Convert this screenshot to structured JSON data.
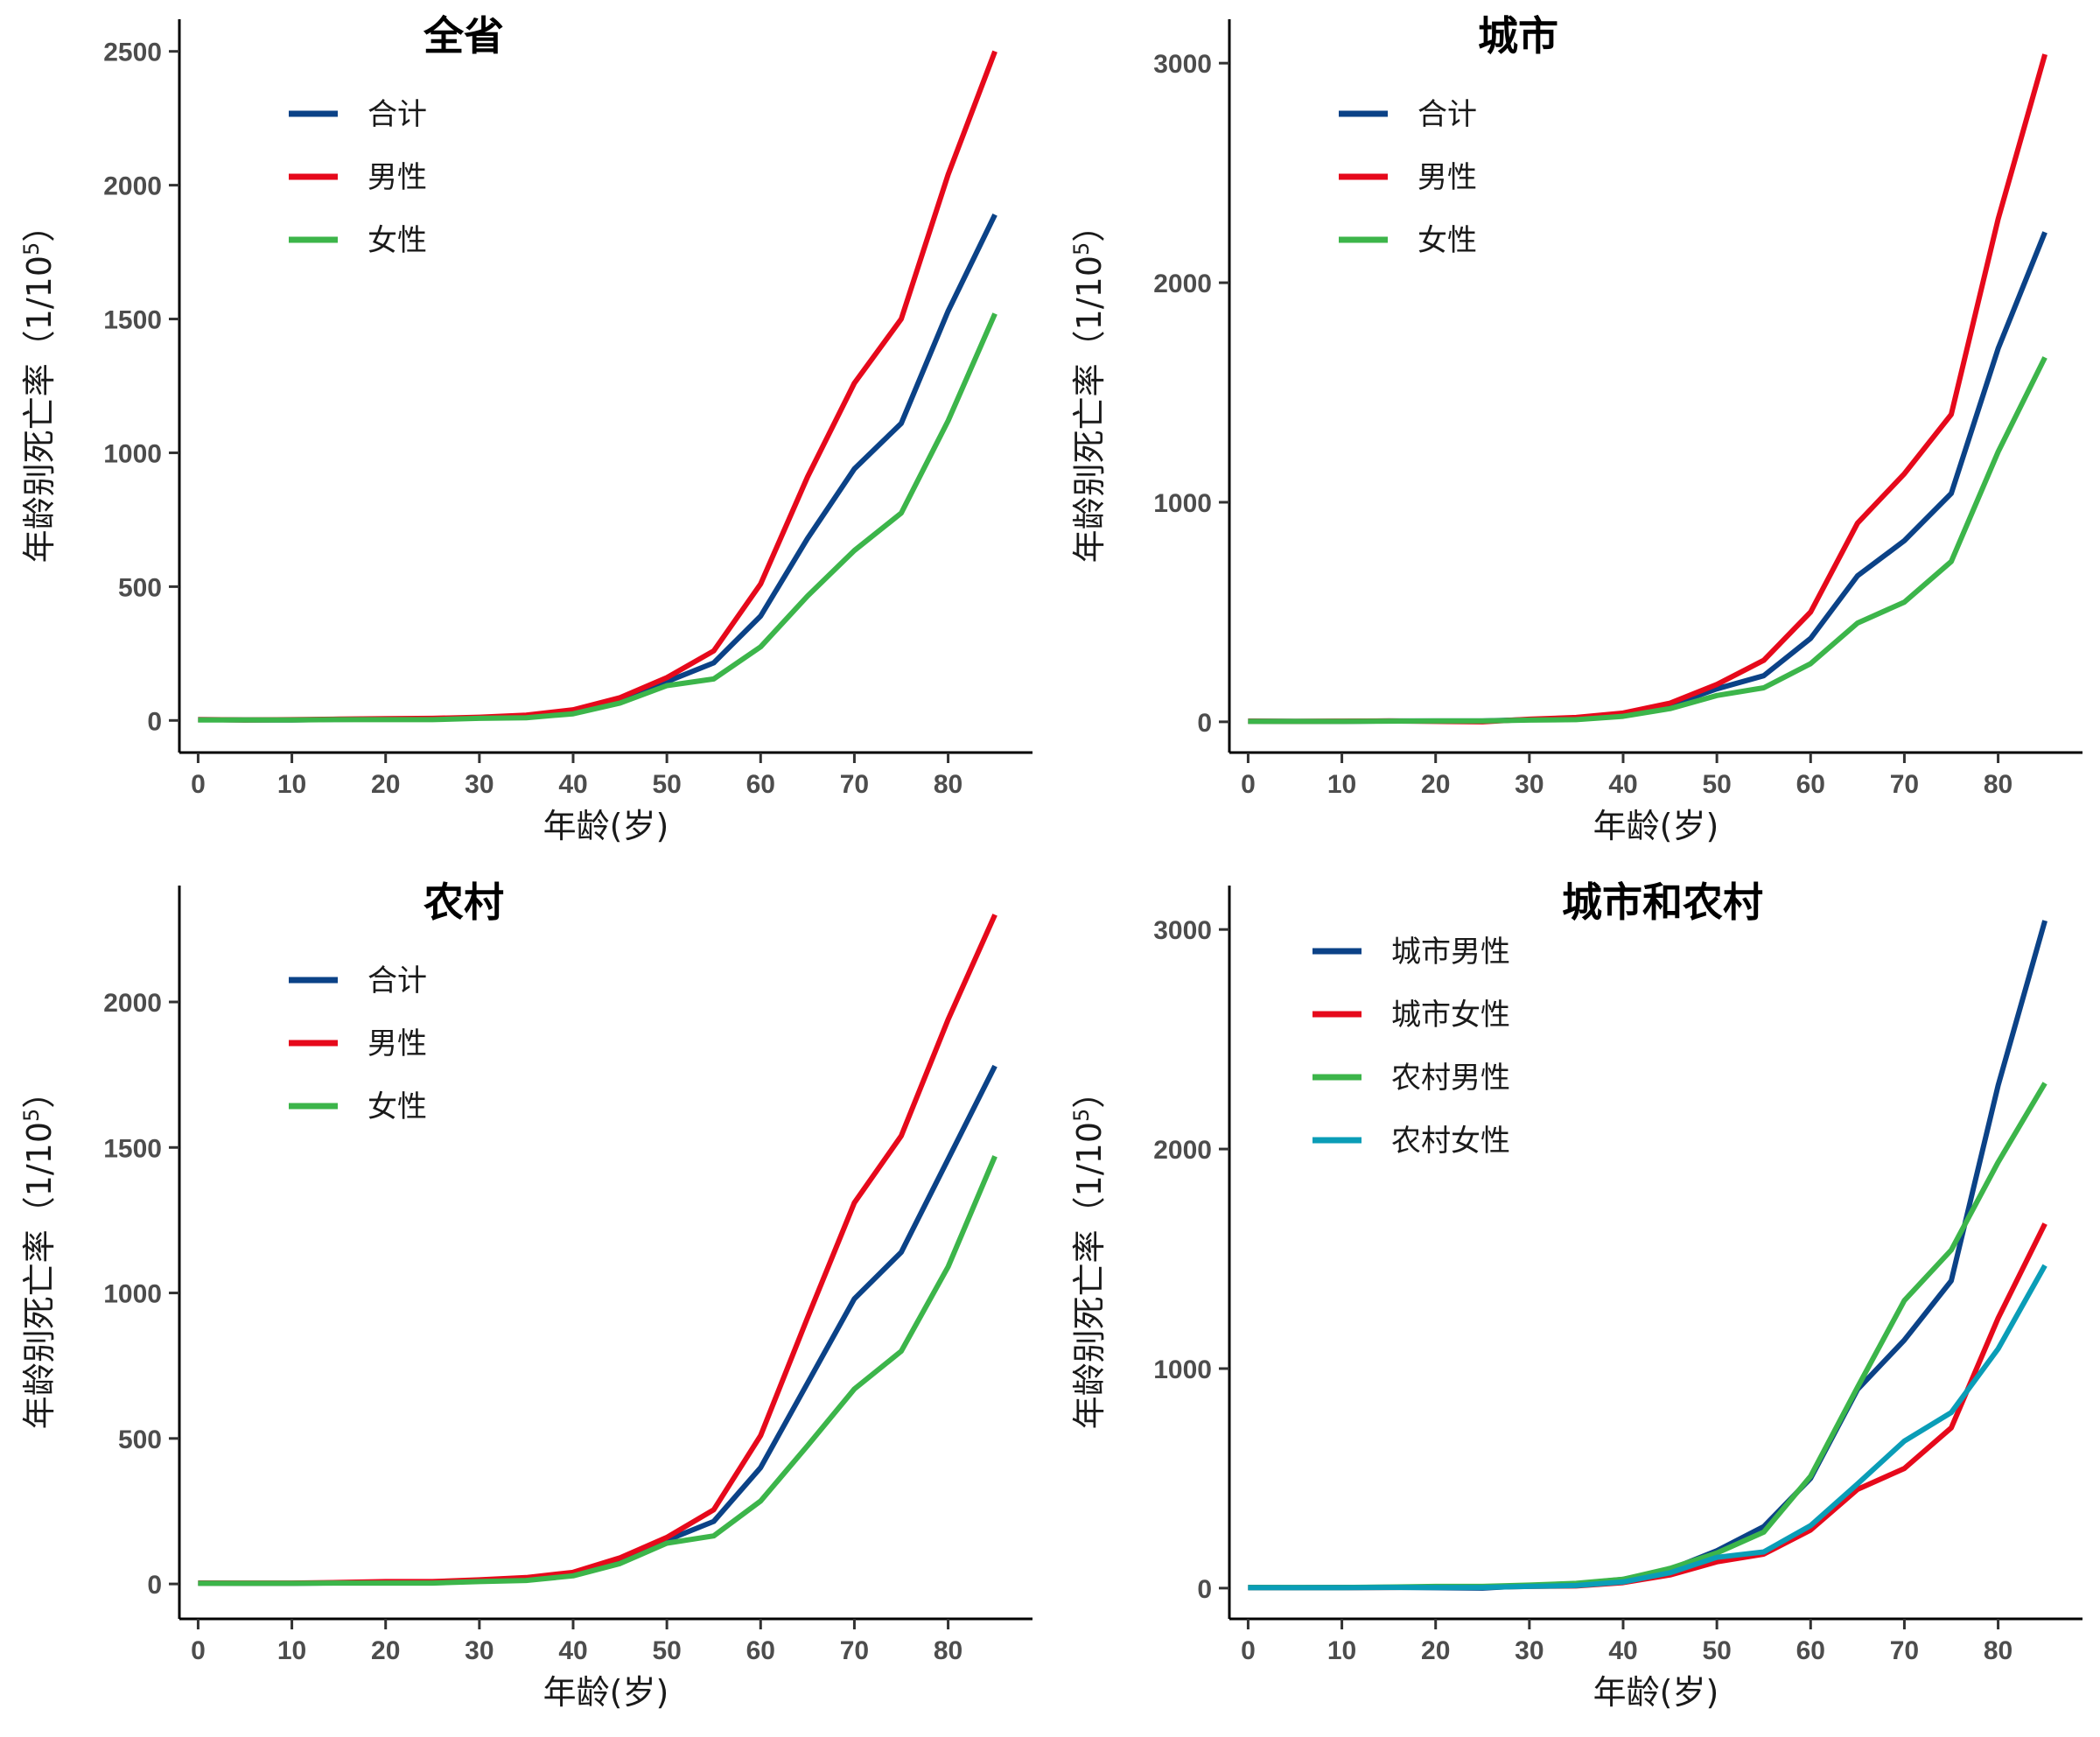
{
  "colors": {
    "total": "#0b4287",
    "male": "#e6091b",
    "female": "#3cb54a",
    "teal": "#0a9db7"
  },
  "chart_data": [
    {
      "type": "line",
      "title": "全省",
      "xlabel": "年龄(岁)",
      "ylabel": "年龄别死亡率（1/10",
      "ylabel_sup": "5",
      "ylabel_close": "）",
      "xlim": [
        -2,
        89
      ],
      "ylim": [
        -120,
        2620
      ],
      "xticks": [
        0,
        10,
        20,
        30,
        40,
        50,
        60,
        70,
        80
      ],
      "yticks": [
        0,
        500,
        1000,
        1500,
        2000,
        2500
      ],
      "legend_position": "top-left",
      "x": [
        0,
        5,
        10,
        15,
        20,
        25,
        30,
        35,
        40,
        45,
        50,
        55,
        60,
        65,
        70,
        75,
        80,
        85
      ],
      "series": [
        {
          "name": "合计",
          "color": "#0b4287",
          "values": [
            3,
            2,
            2,
            4,
            5,
            5,
            10,
            15,
            35,
            75,
            145,
            215,
            390,
            680,
            940,
            1110,
            1530,
            1890
          ]
        },
        {
          "name": "男性",
          "color": "#e6091b",
          "values": [
            3,
            2,
            3,
            5,
            7,
            8,
            12,
            20,
            40,
            85,
            160,
            260,
            510,
            910,
            1260,
            1500,
            2040,
            2500
          ]
        },
        {
          "name": "女性",
          "color": "#3cb54a",
          "values": [
            2,
            2,
            2,
            3,
            3,
            3,
            8,
            10,
            25,
            65,
            130,
            155,
            275,
            465,
            635,
            775,
            1120,
            1520
          ]
        }
      ]
    },
    {
      "type": "line",
      "title": "城市",
      "xlabel": "年龄(岁)",
      "ylabel": "年龄别死亡率（1/10",
      "ylabel_sup": "5",
      "ylabel_close": "）",
      "xlim": [
        -2,
        89
      ],
      "ylim": [
        -140,
        3200
      ],
      "xticks": [
        0,
        10,
        20,
        30,
        40,
        50,
        60,
        70,
        80
      ],
      "yticks": [
        0,
        1000,
        2000,
        3000
      ],
      "legend_position": "top-left",
      "x": [
        0,
        5,
        10,
        15,
        20,
        25,
        30,
        35,
        40,
        45,
        50,
        55,
        60,
        65,
        70,
        75,
        80,
        85
      ],
      "series": [
        {
          "name": "合计",
          "color": "#0b4287",
          "values": [
            3,
            2,
            2,
            4,
            4,
            4,
            10,
            15,
            35,
            75,
            150,
            210,
            380,
            665,
            825,
            1040,
            1700,
            2230
          ]
        },
        {
          "name": "男性",
          "color": "#e6091b",
          "values": [
            3,
            2,
            3,
            4,
            2,
            0,
            12,
            20,
            40,
            85,
            170,
            280,
            500,
            905,
            1130,
            1400,
            2290,
            3040
          ]
        },
        {
          "name": "女性",
          "color": "#3cb54a",
          "values": [
            2,
            2,
            2,
            3,
            4,
            4,
            8,
            10,
            25,
            60,
            120,
            155,
            265,
            450,
            545,
            730,
            1230,
            1660
          ]
        }
      ]
    },
    {
      "type": "line",
      "title": "农村",
      "xlabel": "年龄(岁)",
      "ylabel": "年龄别死亡率（1/10",
      "ylabel_sup": "5",
      "ylabel_close": "）",
      "xlim": [
        -2,
        89
      ],
      "ylim": [
        -120,
        2400
      ],
      "xticks": [
        0,
        10,
        20,
        30,
        40,
        50,
        60,
        70,
        80
      ],
      "yticks": [
        0,
        500,
        1000,
        1500,
        2000
      ],
      "legend_position": "top-left",
      "x": [
        0,
        5,
        10,
        15,
        20,
        25,
        30,
        35,
        40,
        45,
        50,
        55,
        60,
        65,
        70,
        75,
        80,
        85
      ],
      "series": [
        {
          "name": "合计",
          "color": "#0b4287",
          "values": [
            3,
            2,
            2,
            4,
            5,
            5,
            10,
            15,
            35,
            80,
            150,
            215,
            400,
            690,
            980,
            1140,
            1460,
            1780
          ]
        },
        {
          "name": "男性",
          "color": "#e6091b",
          "values": [
            3,
            3,
            3,
            5,
            8,
            8,
            14,
            22,
            40,
            90,
            160,
            255,
            510,
            915,
            1310,
            1540,
            1940,
            2300
          ]
        },
        {
          "name": "女性",
          "color": "#3cb54a",
          "values": [
            2,
            2,
            2,
            3,
            3,
            3,
            8,
            12,
            28,
            70,
            140,
            165,
            285,
            475,
            670,
            800,
            1090,
            1470
          ]
        }
      ]
    },
    {
      "type": "line",
      "title": "城市和农村",
      "xlabel": "年龄(岁)",
      "ylabel": "年龄别死亡率（1/10",
      "ylabel_sup": "5",
      "ylabel_close": "）",
      "xlim": [
        -2,
        89
      ],
      "ylim": [
        -140,
        3200
      ],
      "xticks": [
        0,
        10,
        20,
        30,
        40,
        50,
        60,
        70,
        80
      ],
      "yticks": [
        0,
        1000,
        2000,
        3000
      ],
      "legend_position": "top-left",
      "x": [
        0,
        5,
        10,
        15,
        20,
        25,
        30,
        35,
        40,
        45,
        50,
        55,
        60,
        65,
        70,
        75,
        80,
        85
      ],
      "series": [
        {
          "name": "城市男性",
          "color": "#0b4287",
          "values": [
            3,
            2,
            3,
            4,
            2,
            0,
            12,
            20,
            40,
            85,
            170,
            280,
            500,
            905,
            1130,
            1400,
            2290,
            3040
          ]
        },
        {
          "name": "城市女性",
          "color": "#e6091b",
          "values": [
            2,
            2,
            2,
            3,
            4,
            4,
            8,
            10,
            25,
            60,
            120,
            155,
            265,
            450,
            545,
            730,
            1230,
            1660
          ]
        },
        {
          "name": "农村男性",
          "color": "#3cb54a",
          "values": [
            3,
            3,
            3,
            5,
            8,
            8,
            14,
            22,
            40,
            90,
            160,
            255,
            510,
            915,
            1310,
            1540,
            1940,
            2300
          ]
        },
        {
          "name": "农村女性",
          "color": "#0a9db7",
          "values": [
            2,
            2,
            2,
            3,
            3,
            3,
            8,
            12,
            28,
            70,
            140,
            165,
            285,
            475,
            670,
            800,
            1090,
            1470
          ]
        }
      ]
    }
  ]
}
